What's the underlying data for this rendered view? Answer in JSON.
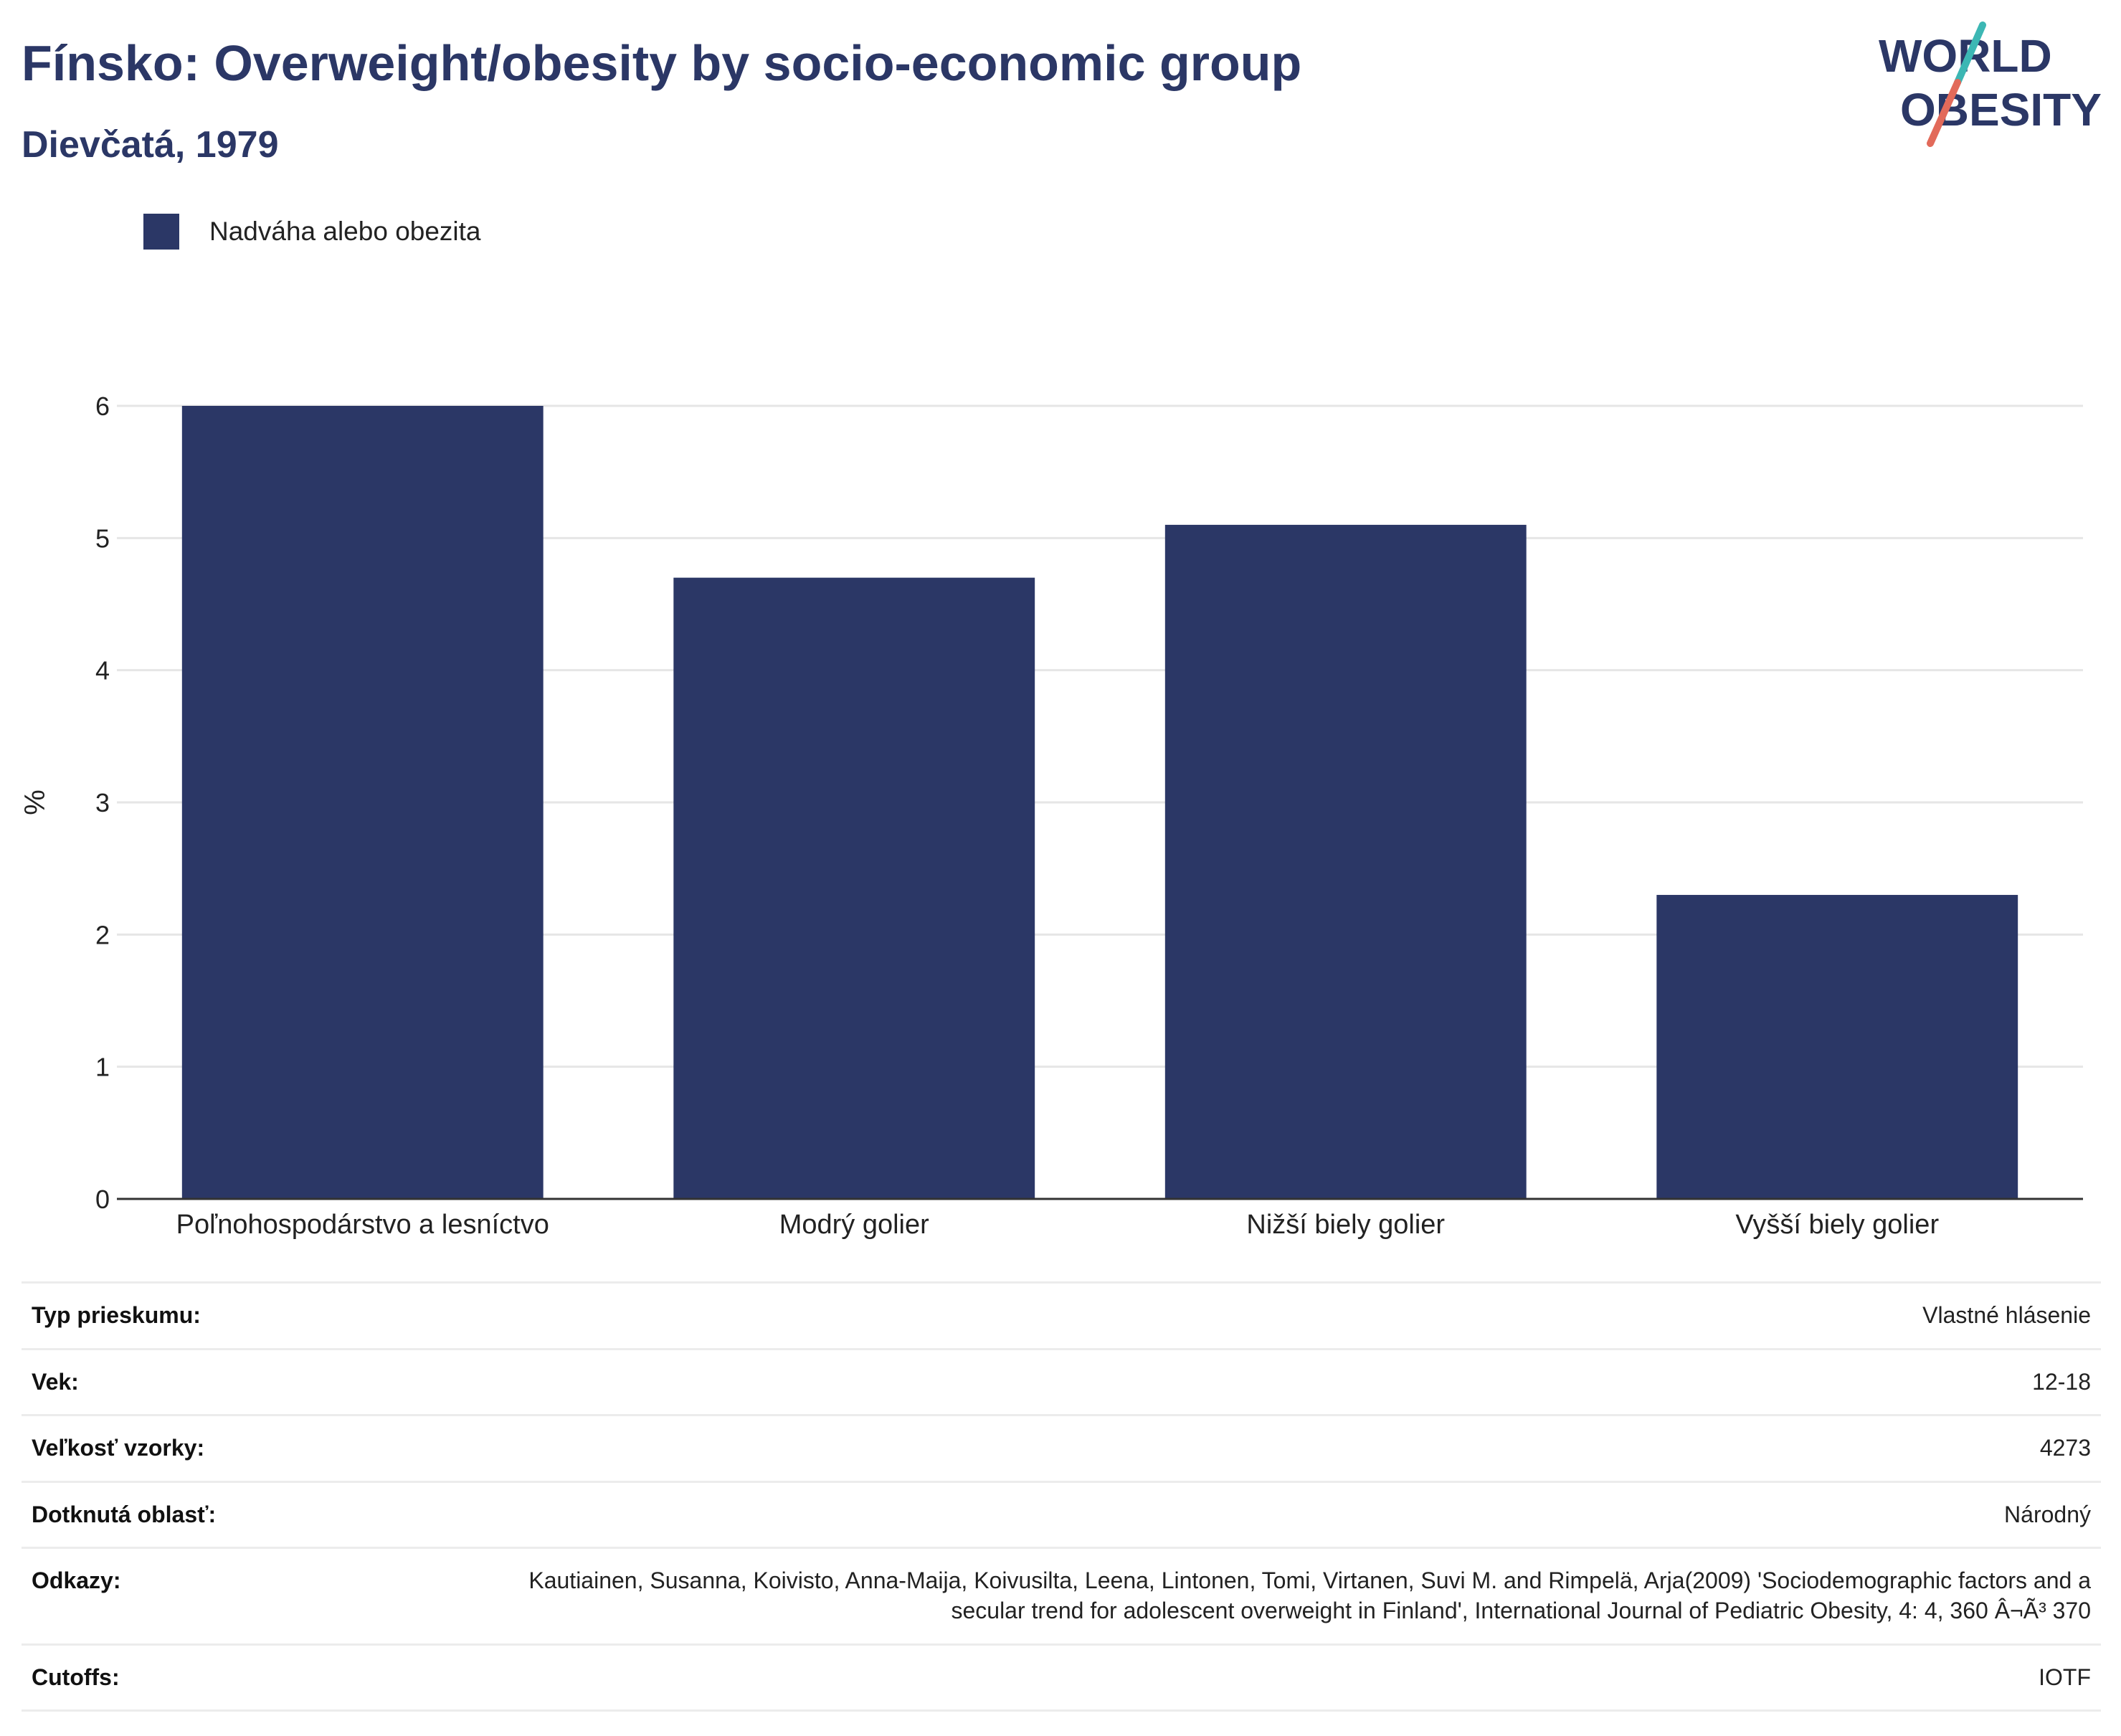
{
  "header": {
    "title": "Fínsko: Overweight/obesity by socio-economic group",
    "subtitle": "Dievčatá, 1979"
  },
  "logo": {
    "line1": "WORLD",
    "line2": "OBESITY"
  },
  "colors": {
    "bar": "#2b3766",
    "accent_teal": "#3cb7b4",
    "accent_coral": "#e26a5a",
    "grid": "#e6e6e6",
    "axis": "#333333"
  },
  "chart_data": {
    "type": "bar",
    "categories": [
      "Poľnohospodárstvo a lesníctvo",
      "Modrý golier",
      "Nižší biely golier",
      "Vyšší biely golier"
    ],
    "series": [
      {
        "name": "Nadváha alebo obezita",
        "values": [
          6.0,
          4.7,
          5.1,
          2.3
        ]
      }
    ],
    "ylabel": "%",
    "ylim": [
      0,
      6
    ],
    "yticks": [
      0,
      1,
      2,
      3,
      4,
      5,
      6
    ],
    "grid": true,
    "legend_position": "top-left"
  },
  "info": {
    "rows": [
      {
        "key": "Typ prieskumu:",
        "value": "Vlastné hlásenie"
      },
      {
        "key": "Vek:",
        "value": "12-18"
      },
      {
        "key": "Veľkosť vzorky:",
        "value": "4273"
      },
      {
        "key": "Dotknutá oblasť:",
        "value": "Národný"
      },
      {
        "key": "Odkazy:",
        "value": "Kautiainen, Susanna, Koivisto, Anna-Maija, Koivusilta, Leena, Lintonen, Tomi, Virtanen, Suvi M. and Rimpelä, Arja(2009) 'Sociodemographic factors and a secular trend for adolescent overweight in Finland', International Journal of Pediatric Obesity, 4: 4, 360 Â¬Ã³ 370"
      },
      {
        "key": "Cutoffs:",
        "value": "IOTF"
      }
    ]
  }
}
